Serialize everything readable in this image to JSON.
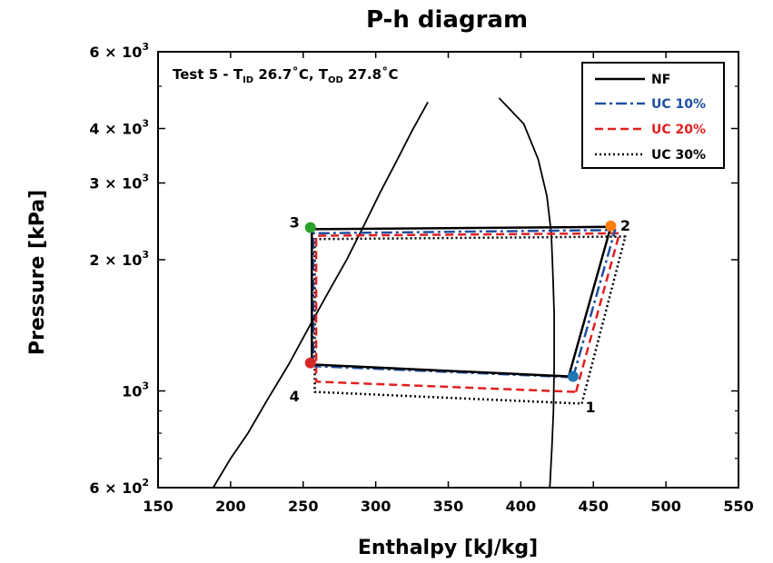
{
  "chart_data": {
    "type": "line",
    "title": "P-h diagram",
    "xlabel": "Enthalpy [kJ/kg]",
    "ylabel": "Pressure [kPa]",
    "xlim": [
      150,
      550
    ],
    "ylim": [
      600,
      6000
    ],
    "yscale": "log",
    "x_ticks": [
      150,
      200,
      250,
      300,
      350,
      400,
      450,
      500,
      550
    ],
    "y_major_ticks": [
      {
        "value": 600,
        "mantissa": "6 × 10",
        "exp": "2"
      },
      {
        "value": 1000,
        "mantissa": "10",
        "exp": "3"
      },
      {
        "value": 2000,
        "mantissa": "2 × 10",
        "exp": "3"
      },
      {
        "value": 3000,
        "mantissa": "3 × 10",
        "exp": "3"
      },
      {
        "value": 4000,
        "mantissa": "4 × 10",
        "exp": "3"
      },
      {
        "value": 6000,
        "mantissa": "6 × 10",
        "exp": "3"
      }
    ],
    "y_minor_ticks": [
      700,
      800,
      900,
      5000
    ],
    "annotation": {
      "prefix": "Test 5 - T",
      "sub1": "ID",
      "mid": " 26.7˚C, T",
      "sub2": "OD",
      "suffix": " 27.8˚C"
    },
    "legend_position": "top-right",
    "saturation_dome": {
      "liquid": [
        [
          188,
          600
        ],
        [
          200,
          700
        ],
        [
          212,
          800
        ],
        [
          225,
          950
        ],
        [
          240,
          1150
        ],
        [
          255,
          1420
        ],
        [
          268,
          1700
        ],
        [
          280,
          2000
        ],
        [
          292,
          2400
        ],
        [
          303,
          2850
        ],
        [
          315,
          3400
        ],
        [
          325,
          3950
        ],
        [
          336,
          4600
        ]
      ],
      "vapor": [
        [
          385,
          4700
        ],
        [
          402,
          4100
        ],
        [
          412,
          3400
        ],
        [
          418,
          2800
        ],
        [
          421,
          2300
        ],
        [
          422,
          1900
        ],
        [
          423,
          1500
        ],
        [
          423,
          1150
        ],
        [
          422.5,
          900
        ],
        [
          421.5,
          750
        ],
        [
          420,
          600
        ]
      ]
    },
    "series": [
      {
        "name": "NF",
        "color": "#000000",
        "dash": "solid",
        "points": [
          [
            433,
            1080
          ],
          [
            462,
            2380
          ],
          [
            256,
            2350
          ],
          [
            256,
            1150
          ],
          [
            433,
            1080
          ]
        ]
      },
      {
        "name": "UC 10%",
        "color": "#1f4fa0",
        "dash": "dashdot",
        "points": [
          [
            436,
            1075
          ],
          [
            465,
            2340
          ],
          [
            257,
            2300
          ],
          [
            257,
            1140
          ],
          [
            436,
            1075
          ]
        ]
      },
      {
        "name": "UC 20%",
        "color": "#e02020",
        "dash": "dashed",
        "points": [
          [
            438,
            995
          ],
          [
            468,
            2300
          ],
          [
            259,
            2270
          ],
          [
            259,
            1050
          ],
          [
            438,
            995
          ]
        ]
      },
      {
        "name": "UC 30%",
        "color": "#000000",
        "dash": "dotted",
        "points": [
          [
            442,
            935
          ],
          [
            472,
            2260
          ],
          [
            258,
            2230
          ],
          [
            258,
            995
          ],
          [
            442,
            935
          ]
        ]
      }
    ],
    "state_points": [
      {
        "label": "1",
        "h": 436,
        "p": 1080,
        "color": "#1f77b4",
        "label_h": 448,
        "label_p": 920
      },
      {
        "label": "2",
        "h": 462,
        "p": 2390,
        "color": "#ff7f0e",
        "label_h": 472,
        "label_p": 2400
      },
      {
        "label": "3",
        "h": 255,
        "p": 2370,
        "color": "#2ca02c",
        "label_h": 244,
        "label_p": 2440
      },
      {
        "label": "4",
        "h": 255,
        "p": 1160,
        "color": "#d62728",
        "label_h": 244,
        "label_p": 975
      }
    ]
  }
}
